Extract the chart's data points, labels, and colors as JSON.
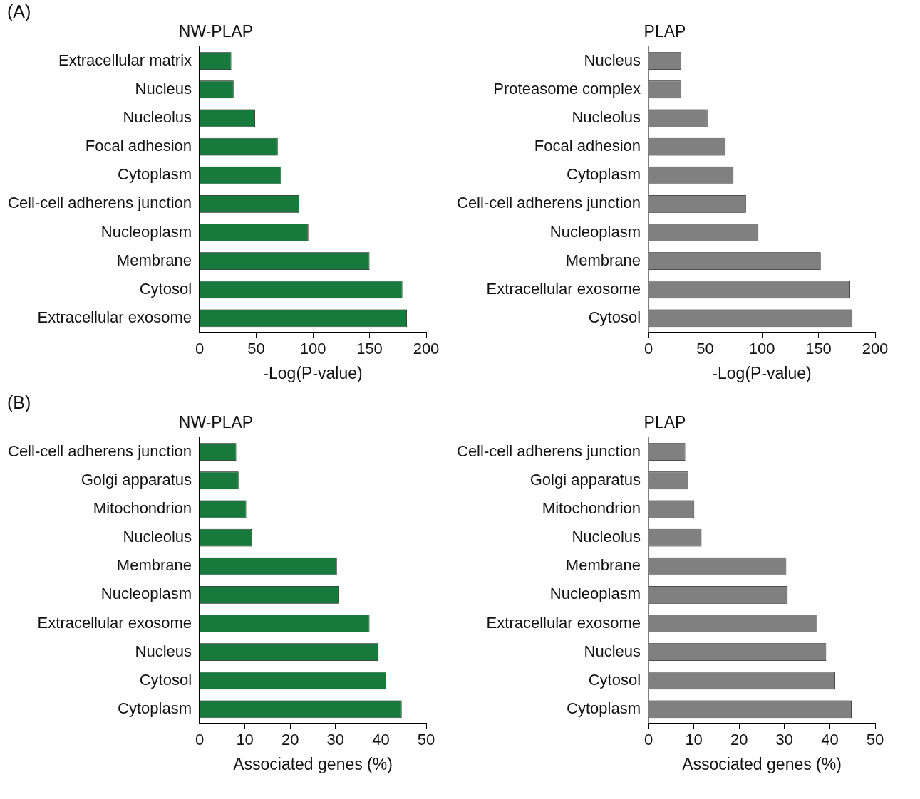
{
  "chart_data": [
    {
      "type": "bar",
      "orientation": "horizontal",
      "title": "NW-PLAP",
      "xlabel": "-Log(P-value)",
      "annotations": [
        "(A)"
      ],
      "color": "#17793b",
      "categories": [
        "Extracellular matrix",
        "Nucleus",
        "Nucleolus",
        "Focal adhesion",
        "Cytoplasm",
        "Cell-cell adherens junction",
        "Nucleoplasm",
        "Membrane",
        "Cytosol",
        "Extracellular exosome"
      ],
      "values": [
        28,
        30,
        49,
        69,
        72,
        88,
        96,
        150,
        179,
        183
      ],
      "xlim": [
        0,
        200
      ],
      "xticks": [
        0,
        50,
        100,
        150,
        200
      ]
    },
    {
      "type": "bar",
      "orientation": "horizontal",
      "title": "PLAP",
      "xlabel": "-Log(P-value)",
      "color": "#808080",
      "categories": [
        "Nucleus",
        "Proteasome complex",
        "Nucleolus",
        "Focal adhesion",
        "Cytoplasm",
        "Cell-cell adherens junction",
        "Nucleoplasm",
        "Membrane",
        "Extracellular exosome",
        "Cytosol"
      ],
      "values": [
        29,
        29,
        52,
        68,
        75,
        86,
        97,
        152,
        178,
        180
      ],
      "xlim": [
        0,
        200
      ],
      "xticks": [
        0,
        50,
        100,
        150,
        200
      ]
    },
    {
      "type": "bar",
      "orientation": "horizontal",
      "title": "NW-PLAP",
      "xlabel": "Associated genes (%)",
      "annotations": [
        "(B)"
      ],
      "color": "#17793b",
      "categories": [
        "Cell-cell adherens junction",
        "Golgi apparatus",
        "Mitochondrion",
        "Nucleolus",
        "Membrane",
        "Nucleoplasm",
        "Extracellular exosome",
        "Nucleus",
        "Cytosol",
        "Cytoplasm"
      ],
      "values": [
        8.1,
        8.6,
        10.3,
        11.5,
        30.3,
        30.8,
        37.5,
        39.5,
        41.2,
        44.6
      ],
      "xlim": [
        0,
        50
      ],
      "xticks": [
        0,
        10,
        20,
        30,
        40,
        50
      ]
    },
    {
      "type": "bar",
      "orientation": "horizontal",
      "title": "PLAP",
      "xlabel": "Associated genes (%)",
      "color": "#808080",
      "categories": [
        "Cell-cell adherens junction",
        "Golgi apparatus",
        "Mitochondrion",
        "Nucleolus",
        "Membrane",
        "Nucleoplasm",
        "Extracellular exosome",
        "Nucleus",
        "Cytosol",
        "Cytoplasm"
      ],
      "values": [
        8.1,
        8.8,
        10.1,
        11.7,
        30.4,
        30.7,
        37.2,
        39.2,
        41.2,
        44.8
      ],
      "xlim": [
        0,
        50
      ],
      "xticks": [
        0,
        10,
        20,
        30,
        40,
        50
      ]
    }
  ]
}
